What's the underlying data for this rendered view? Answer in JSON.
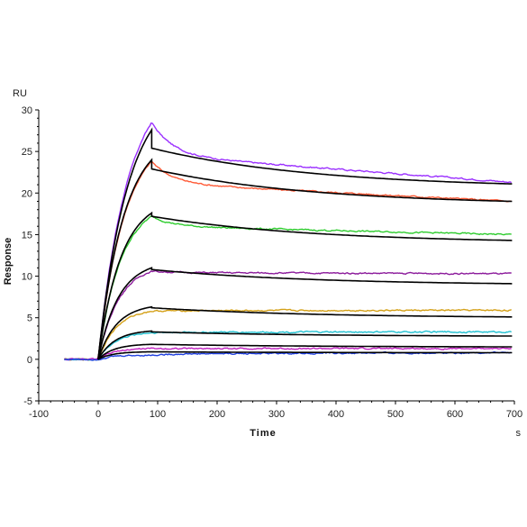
{
  "chart_data": {
    "type": "line",
    "xlabel": "Time",
    "ylabel": "Response",
    "x_unit": "s",
    "y_unit": "RU",
    "xlim": [
      -100,
      700
    ],
    "ylim": [
      -5,
      30
    ],
    "x_ticks": [
      -100,
      0,
      100,
      200,
      300,
      400,
      500,
      600,
      700
    ],
    "y_ticks": [
      -5,
      0,
      5,
      10,
      15,
      20,
      25,
      30
    ],
    "grid": false,
    "fit_color": "#000000",
    "association_end": 90,
    "series": [
      {
        "color": "#9b30ff",
        "peak": 28.5,
        "end": 21.3,
        "fit_peak": 27.6,
        "fit_start": 25.4,
        "fit_end": 21.1
      },
      {
        "color": "#ff5a36",
        "peak": 23.8,
        "end": 19.0,
        "fit_peak": 24.0,
        "fit_start": 22.9,
        "fit_end": 19.0
      },
      {
        "color": "#2ecc2e",
        "peak": 17.2,
        "end": 15.0,
        "fit_peak": 17.6,
        "fit_start": 17.2,
        "fit_end": 14.3
      },
      {
        "color": "#8b1a9b",
        "peak": 10.6,
        "end": 10.3,
        "fit_peak": 11.0,
        "fit_start": 10.8,
        "fit_end": 9.1
      },
      {
        "color": "#d4a017",
        "peak": 5.8,
        "end": 5.9,
        "fit_peak": 6.3,
        "fit_start": 6.2,
        "fit_end": 5.1
      },
      {
        "color": "#20c0d0",
        "peak": 3.2,
        "end": 3.3,
        "fit_peak": 3.4,
        "fit_start": 3.3,
        "fit_end": 2.8
      },
      {
        "color": "#c020c0",
        "peak": 1.3,
        "end": 1.3,
        "fit_peak": 1.8,
        "fit_start": 1.8,
        "fit_end": 1.5
      },
      {
        "color": "#2040e0",
        "peak": 0.5,
        "end": 0.8,
        "fit_peak": 0.9,
        "fit_start": 0.9,
        "fit_end": 0.8
      }
    ]
  }
}
